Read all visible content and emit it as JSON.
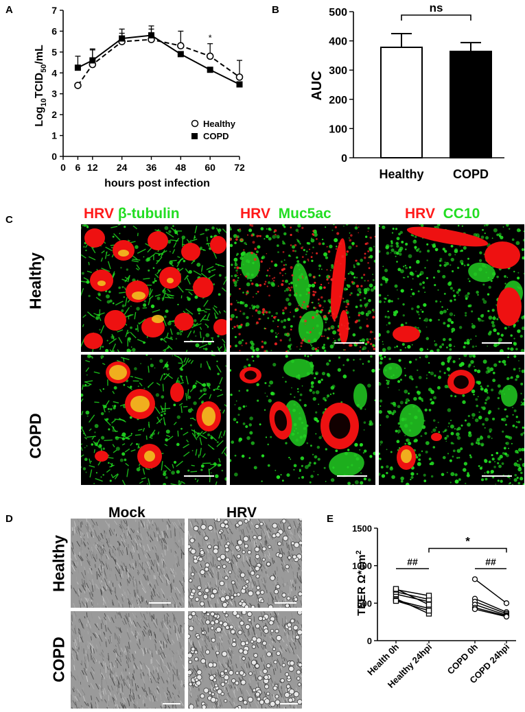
{
  "panels": {
    "A": {
      "letter": "A",
      "ylabel_prefix": "Log",
      "ylabel_sub1": "10",
      "ylabel_mid": "TCID",
      "ylabel_sub2": "50",
      "ylabel_suffix": "/mL",
      "xlabel": "hours post infection",
      "x_ticks": [
        "0",
        "6",
        "12",
        "24",
        "36",
        "48",
        "60",
        "72"
      ],
      "y_ticks": [
        "0",
        "1",
        "2",
        "3",
        "4",
        "5",
        "6",
        "7"
      ],
      "legend": [
        "Healthy",
        "COPD"
      ],
      "significance": "*"
    },
    "B": {
      "letter": "B",
      "ylabel": "AUC",
      "y_ticks": [
        "0",
        "100",
        "200",
        "300",
        "400",
        "500"
      ],
      "categories": [
        "Healthy",
        "COPD"
      ],
      "significance": "ns"
    },
    "C": {
      "letter": "C",
      "col1": {
        "a": "HRV",
        "b": "β-tubulin"
      },
      "col2": {
        "a": "HRV",
        "b": "Muc5ac"
      },
      "col3": {
        "a": "HRV",
        "b": "CC10"
      },
      "rows": [
        "Healthy",
        "COPD"
      ]
    },
    "D": {
      "letter": "D",
      "cols": [
        "Mock",
        "HRV"
      ],
      "rows": [
        "Healthy",
        "COPD"
      ]
    },
    "E": {
      "letter": "E",
      "ylabel_text": "TEER Ω*cm",
      "ylabel_sup": "2",
      "y_ticks": [
        "0",
        "500",
        "1000",
        "1500"
      ],
      "categories": [
        "Health 0h",
        "Healthy 24hpi",
        "COPD 0h",
        "COPD 24hpi"
      ],
      "sig_left": "##",
      "sig_right": "##",
      "sig_top": "*"
    }
  },
  "chart_data": [
    {
      "panel": "A",
      "type": "line",
      "xlabel": "hours post infection",
      "ylabel": "Log10TCID50/mL",
      "xlim": [
        0,
        72
      ],
      "ylim": [
        0,
        7
      ],
      "x": [
        6,
        12,
        24,
        36,
        48,
        60,
        72
      ],
      "series": [
        {
          "name": "Healthy",
          "marker": "open-circle",
          "line": "dashed",
          "values": [
            3.4,
            4.4,
            5.5,
            5.6,
            5.3,
            4.8,
            3.8
          ],
          "err": [
            0.0,
            0.7,
            0.4,
            0.5,
            0.7,
            0.6,
            0.8
          ]
        },
        {
          "name": "COPD",
          "marker": "filled-square",
          "line": "solid",
          "values": [
            4.25,
            4.6,
            5.65,
            5.8,
            4.9,
            4.15,
            3.45
          ],
          "err": [
            0.55,
            0.55,
            0.45,
            0.45,
            0.0,
            0.0,
            0.0
          ]
        }
      ],
      "annotations": [
        {
          "x": 60,
          "text": "*"
        }
      ],
      "legend_position": "bottom-right"
    },
    {
      "panel": "B",
      "type": "bar",
      "ylabel": "AUC",
      "categories": [
        "Healthy",
        "COPD"
      ],
      "values": [
        378,
        364
      ],
      "err": [
        47,
        30
      ],
      "colors": [
        "#ffffff",
        "#000000"
      ],
      "ylim": [
        0,
        500
      ],
      "annotations": [
        {
          "between": [
            "Healthy",
            "COPD"
          ],
          "text": "ns"
        }
      ]
    },
    {
      "panel": "E",
      "type": "scatter",
      "ylabel": "TEER Ω*cm2",
      "ylim": [
        0,
        1500
      ],
      "categories": [
        "Health 0h",
        "Healthy 24hpi",
        "COPD 0h",
        "COPD 24hpi"
      ],
      "paired_series": [
        {
          "name": "Healthy",
          "marker": "open-square",
          "pairs": [
            [
              560,
              360
            ],
            [
              540,
              430
            ],
            [
              620,
              520
            ],
            [
              650,
              550
            ],
            [
              680,
              600
            ],
            [
              690,
              480
            ],
            [
              530,
              400
            ]
          ]
        },
        {
          "name": "COPD",
          "marker": "open-circle",
          "pairs": [
            [
              820,
              500
            ],
            [
              560,
              380
            ],
            [
              520,
              360
            ],
            [
              480,
              340
            ],
            [
              440,
              330
            ],
            [
              420,
              320
            ]
          ]
        }
      ],
      "annotations": [
        {
          "between": [
            "Health 0h",
            "Healthy 24hpi"
          ],
          "text": "##"
        },
        {
          "between": [
            "COPD 0h",
            "COPD 24hpi"
          ],
          "text": "##"
        },
        {
          "between": [
            "Healthy 24hpi",
            "COPD 24hpi"
          ],
          "text": "*"
        }
      ]
    }
  ]
}
